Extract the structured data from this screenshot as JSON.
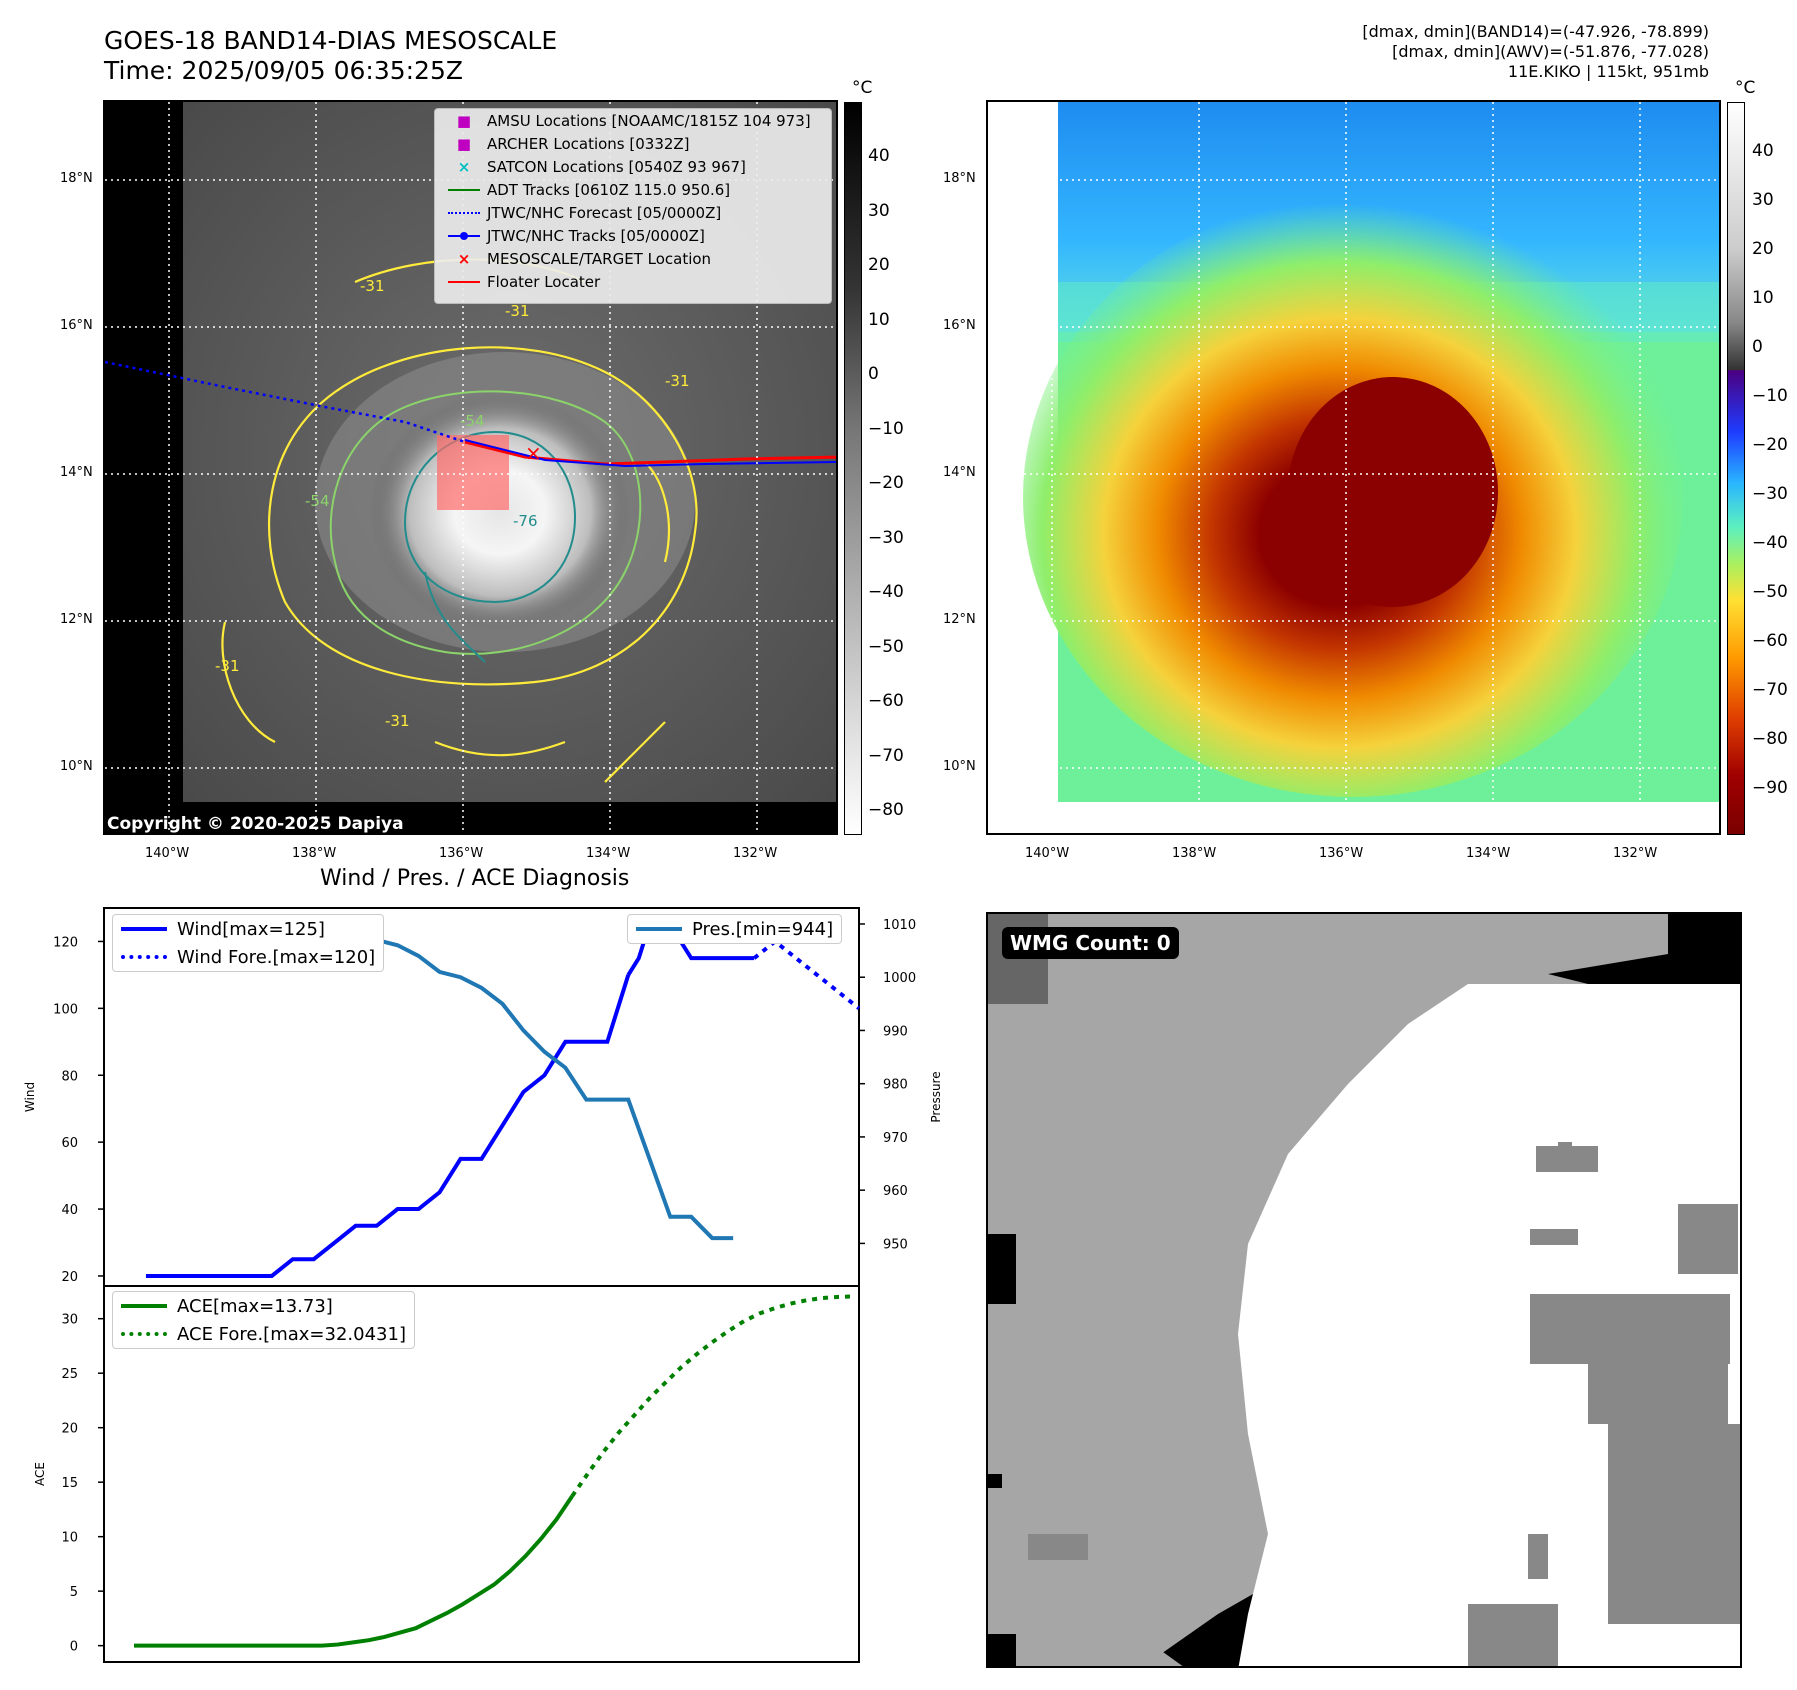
{
  "header": {
    "title_line1": "GOES-18 BAND14-DIAS MESOSCALE",
    "title_line2": "Time: 2025/09/05 06:35:25Z",
    "info_line1": "[dmax, dmin](BAND14)=(-47.926, -78.899)",
    "info_line2": "[dmax, dmin](AWV)=(-51.876, -77.028)",
    "info_line3": "11E.KIKO | 115kt, 951mb"
  },
  "map": {
    "lon_ticks": [
      "140°W",
      "138°W",
      "136°W",
      "134°W",
      "132°W"
    ],
    "lat_ticks": [
      "18°N",
      "16°N",
      "14°N",
      "12°N",
      "10°N"
    ],
    "copyright": "Copyright © 2020-2025 Dapiya",
    "contour_labels": [
      "-31",
      "-31",
      "-31",
      "-31",
      "-54",
      "-54",
      "-76",
      "-31"
    ],
    "legend": [
      {
        "symbol": "■",
        "color": "#c000c0",
        "label": "AMSU Locations [NOAAMC/1815Z 104 973]"
      },
      {
        "symbol": "■",
        "color": "#c000c0",
        "label": "ARCHER Locations [0332Z]"
      },
      {
        "symbol": "×",
        "color": "#00bfbf",
        "label": "SATCON Locations [0540Z 93 967]"
      },
      {
        "symbol": "line",
        "color": "#008000",
        "label": "ADT Tracks [0610Z 115.0 950.6]"
      },
      {
        "symbol": "dotted",
        "color": "#0000ff",
        "label": "JTWC/NHC Forecast [05/0000Z]"
      },
      {
        "symbol": "dotline",
        "color": "#0000ff",
        "label": "JTWC/NHC Tracks [05/0000Z]"
      },
      {
        "symbol": "×",
        "color": "#ff0000",
        "label": "MESOSCALE/TARGET Location"
      },
      {
        "symbol": "line",
        "color": "#ff0000",
        "label": "Floater Locater"
      }
    ]
  },
  "colorbars": {
    "unit": "°C",
    "left_ticks": [
      "40",
      "30",
      "20",
      "10",
      "0",
      "−10",
      "−20",
      "−30",
      "−40",
      "−50",
      "−60",
      "−70",
      "−80"
    ],
    "right_ticks": [
      "40",
      "30",
      "20",
      "10",
      "0",
      "−10",
      "−20",
      "−30",
      "−40",
      "−50",
      "−60",
      "−70",
      "−80",
      "−90"
    ]
  },
  "wmg": {
    "label": "WMG Count: 0"
  },
  "chart_data": [
    {
      "type": "line",
      "title": "Wind / Pres. / ACE Diagnosis",
      "ylabel": "Wind",
      "y2label": "Pressure",
      "ylim": [
        17,
        130
      ],
      "y2lim": [
        942,
        1013
      ],
      "yticks": [
        20,
        40,
        60,
        80,
        100,
        120
      ],
      "y2ticks": [
        950,
        960,
        970,
        980,
        990,
        1000,
        1010
      ],
      "xlim": [
        -2,
        34
      ],
      "series": [
        {
          "name": "Wind[max=125]",
          "style": "solid",
          "color": "#0000ff",
          "x": [
            0,
            1,
            2,
            3,
            4,
            5,
            6,
            7,
            8,
            9,
            10,
            11,
            12,
            13,
            14,
            15,
            16,
            17,
            18,
            19,
            20,
            21,
            22,
            23
          ],
          "values": [
            20,
            20,
            20,
            20,
            20,
            20,
            20,
            25,
            25,
            30,
            35,
            35,
            40,
            40,
            45,
            55,
            55,
            65,
            75,
            80,
            90,
            90,
            90,
            110
          ]
        },
        {
          "name": "Wind[max=125] (cont)",
          "style": "solid",
          "color": "#0000ff",
          "x": [
            23,
            23.5,
            24,
            25,
            26,
            27,
            28,
            29
          ],
          "values": [
            110,
            115,
            125,
            125,
            115,
            115,
            115,
            115
          ]
        },
        {
          "name": "Wind Fore.[max=120]",
          "style": "dotted",
          "color": "#0000ff",
          "x": [
            29,
            30,
            31,
            32,
            33,
            34
          ],
          "values": [
            115,
            120,
            115,
            110,
            105,
            100
          ]
        },
        {
          "name": "Pres.[min=944]",
          "style": "solid",
          "color": "#1f77b4",
          "axis": "y2",
          "x": [
            0,
            2,
            4,
            6,
            8,
            10,
            12,
            13,
            14,
            15,
            16,
            17,
            18,
            19,
            20,
            21,
            22,
            23,
            24,
            25,
            26,
            27,
            28
          ],
          "values": [
            1010,
            1010,
            1010,
            1010,
            1009,
            1008,
            1006,
            1004,
            1001,
            1000,
            998,
            995,
            990,
            986,
            983,
            977,
            977,
            977,
            966,
            955,
            955,
            951,
            951
          ]
        }
      ],
      "wind_forecast_legend": "Wind Fore.[max=120]"
    },
    {
      "type": "line",
      "ylabel": "ACE",
      "ylim": [
        -1.5,
        33
      ],
      "yticks": [
        0,
        5,
        10,
        15,
        20,
        25,
        30
      ],
      "series": [
        {
          "name": "ACE[max=13.73]",
          "style": "solid",
          "color": "#008000",
          "x": [
            0,
            3,
            6,
            9,
            10,
            11,
            12,
            13,
            14,
            15,
            16,
            17,
            18,
            19,
            20,
            21,
            22,
            23,
            24,
            25,
            26,
            27,
            28
          ],
          "values": [
            0,
            0,
            0,
            0,
            0,
            0,
            0,
            0.1,
            0.3,
            0.5,
            0.8,
            1.2,
            1.6,
            2.3,
            3.0,
            3.8,
            4.7,
            5.6,
            6.8,
            8.2,
            9.8,
            11.6,
            13.73
          ]
        },
        {
          "name": "ACE Fore.[max=32.0431]",
          "style": "dotted",
          "color": "#008000",
          "x": [
            28,
            29,
            30,
            31,
            32,
            33,
            34,
            35,
            36,
            37,
            38,
            39,
            40,
            41,
            42,
            43,
            44,
            45,
            46
          ],
          "values": [
            13.73,
            15.8,
            17.8,
            19.6,
            21.2,
            22.8,
            24.2,
            25.6,
            26.8,
            27.9,
            28.9,
            29.8,
            30.5,
            31.0,
            31.4,
            31.7,
            31.9,
            32.0,
            32.0431
          ]
        }
      ]
    }
  ]
}
